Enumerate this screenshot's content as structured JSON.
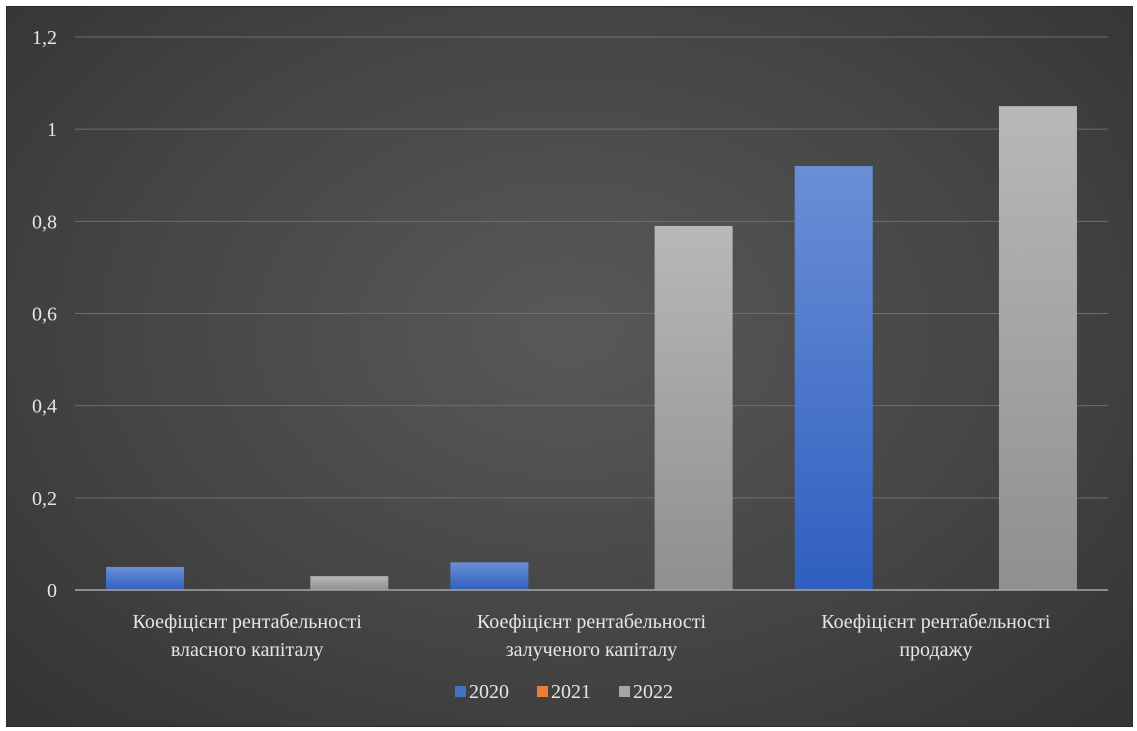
{
  "chart_data": {
    "type": "bar",
    "categories": [
      [
        "Коефіцієнт рентабельності",
        "власного капіталу"
      ],
      [
        "Коефіцієнт рентабельності",
        "залученого капіталу"
      ],
      [
        "Коефіцієнт рентабельності",
        "продажу"
      ]
    ],
    "series": [
      {
        "name": "2020",
        "values": [
          0.05,
          0.06,
          0.92
        ],
        "color": "#4472c4"
      },
      {
        "name": "2021",
        "values": [
          0,
          0,
          0
        ],
        "color": "#ed7d31"
      },
      {
        "name": "2022",
        "values": [
          0.03,
          0.79,
          1.05
        ],
        "color": "#a5a5a5"
      }
    ],
    "yticks": [
      "0",
      "0,2",
      "0,4",
      "0,6",
      "0,8",
      "1",
      "1,2"
    ],
    "ylim": [
      0,
      1.2
    ],
    "grid": true,
    "legend": "bottom",
    "title": "",
    "xlabel": "",
    "ylabel": ""
  }
}
